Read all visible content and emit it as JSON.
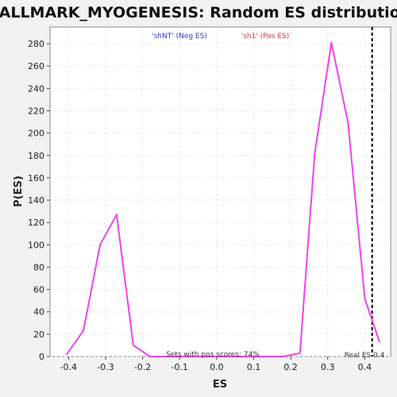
{
  "chart_data": {
    "type": "line",
    "title": "HALLMARK_MYOGENESIS: Random ES distribution",
    "xlabel": "ES",
    "ylabel": "P(ES)",
    "xlim": [
      -0.45,
      0.47
    ],
    "ylim": [
      0,
      295
    ],
    "x_ticks": [
      -0.4,
      -0.3,
      -0.2,
      -0.1,
      0.0,
      0.1,
      0.2,
      0.3,
      0.4
    ],
    "x_tick_labels": [
      "-0.4",
      "-0.3",
      "-0.2",
      "-0.1",
      "0.0",
      "0.1",
      "0.2",
      "0.3",
      "0.4"
    ],
    "y_ticks": [
      0,
      20,
      40,
      60,
      80,
      100,
      120,
      140,
      160,
      180,
      200,
      220,
      240,
      260,
      280
    ],
    "y_tick_labels": [
      "0",
      "20",
      "40",
      "60",
      "80",
      "100",
      "120",
      "140",
      "160",
      "180",
      "200",
      "220",
      "240",
      "260",
      "280"
    ],
    "grid": true,
    "series": [
      {
        "color": "#ee44ee",
        "points": [
          [
            -0.405,
            2
          ],
          [
            -0.36,
            23
          ],
          [
            -0.315,
            100
          ],
          [
            -0.27,
            127
          ],
          [
            -0.225,
            10
          ],
          [
            -0.18,
            0
          ],
          [
            -0.135,
            0
          ],
          [
            -0.09,
            0
          ],
          [
            -0.045,
            0
          ],
          [
            0.0,
            0
          ],
          [
            0.045,
            0
          ],
          [
            0.09,
            0
          ],
          [
            0.135,
            0
          ],
          [
            0.18,
            0
          ],
          [
            0.225,
            3
          ],
          [
            0.265,
            182
          ],
          [
            0.31,
            281
          ],
          [
            0.355,
            209
          ],
          [
            0.4,
            52
          ],
          [
            0.44,
            13
          ]
        ]
      }
    ],
    "reference_line": {
      "x": 0.42,
      "style": "dashed",
      "color": "#000000",
      "label": "Real ES 0.4"
    },
    "legend": {
      "placement": "top",
      "neg_label": "'shNT' (Neg ES)",
      "neg_color": "#3333dd",
      "pos_label": "'sh1' (Pos ES)",
      "pos_color": "#dd3333"
    },
    "annotation": "Sets with pos scores: 74%"
  }
}
